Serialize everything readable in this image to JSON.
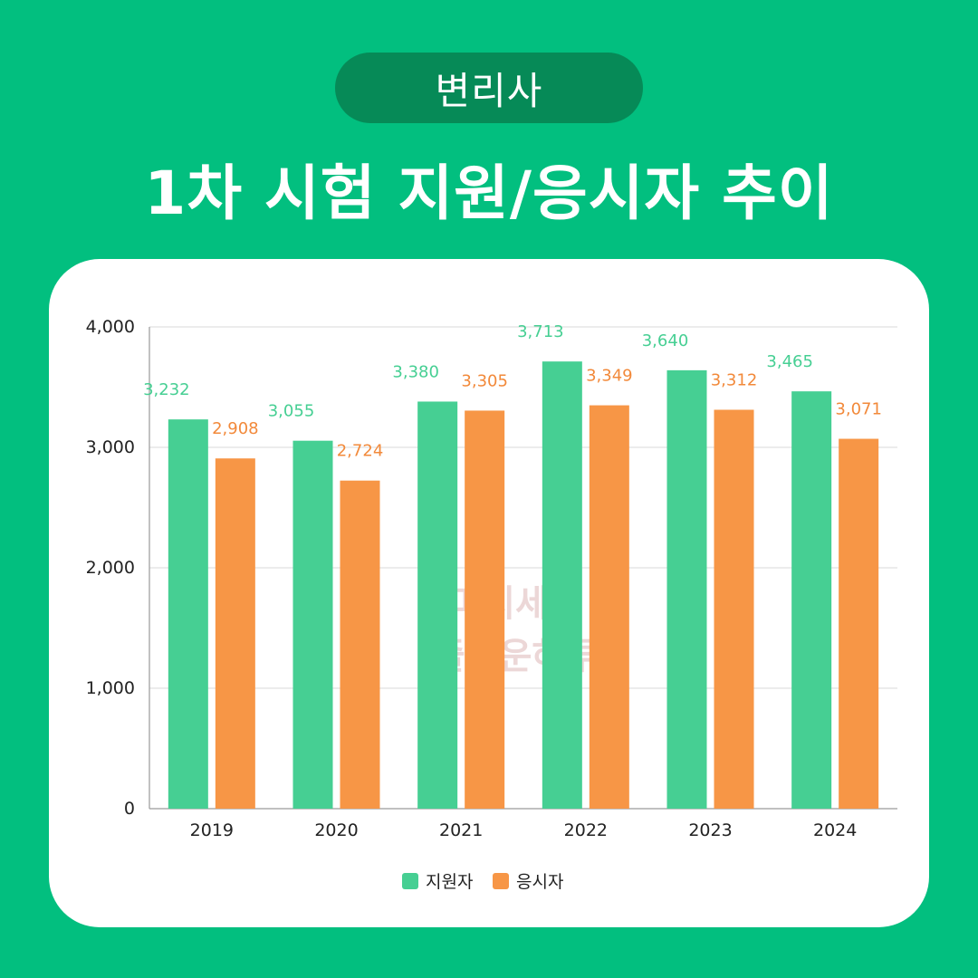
{
  "header": {
    "tag": "변리사",
    "title": "1차 시험 지원/응시자 추이"
  },
  "watermark": [
    "마치세대",
    "즐거운하루"
  ],
  "colors": {
    "background": "#02bf7f",
    "pill": "#068a57",
    "series_applicants": "#46cf93",
    "series_test_takers": "#f79646"
  },
  "chart_data": {
    "type": "bar",
    "categories": [
      "2019",
      "2020",
      "2021",
      "2022",
      "2023",
      "2024"
    ],
    "series": [
      {
        "name": "지원자",
        "values": [
          3232,
          3055,
          3380,
          3713,
          3640,
          3465
        ]
      },
      {
        "name": "응시자",
        "values": [
          2908,
          2724,
          3305,
          3349,
          3312,
          3071
        ]
      }
    ],
    "value_labels": [
      [
        "3,232",
        "3,055",
        "3,380",
        "3,713",
        "3,640",
        "3,465"
      ],
      [
        "2,908",
        "2,724",
        "3,305",
        "3,349",
        "3,312",
        "3,071"
      ]
    ],
    "yticks": [
      "0",
      "1,000",
      "2,000",
      "3,000",
      "4,000"
    ],
    "ylim": [
      0,
      4000
    ],
    "grid": true,
    "legend": "bottom-center"
  }
}
